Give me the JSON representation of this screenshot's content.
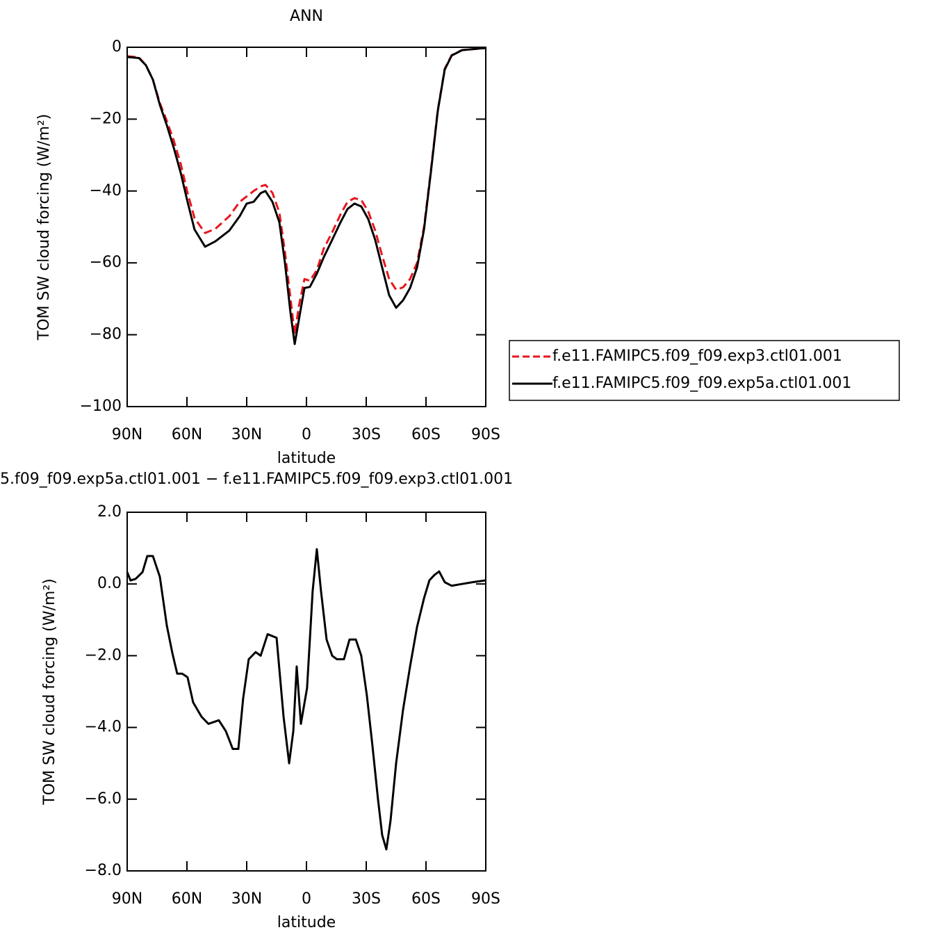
{
  "chart_data": [
    {
      "type": "line",
      "title": "ANN",
      "xlabel": "latitude",
      "ylabel": "TOM SW cloud forcing (W/m²)",
      "x": [
        90,
        84.1,
        80.6,
        77.1,
        73.6,
        70.1,
        66.6,
        63.1,
        59.7,
        56.2,
        50.9,
        45.7,
        38.7,
        33.5,
        30,
        26.5,
        23,
        20.6,
        17.1,
        13.6,
        10.8,
        8,
        5.9,
        3.8,
        1,
        -1.7,
        -5.2,
        -8.7,
        -12.9,
        -17.1,
        -20.6,
        -24.1,
        -27.5,
        -31,
        -34.5,
        -38,
        -41.5,
        -45,
        -48.5,
        -52,
        -55.5,
        -59,
        -62.4,
        -65.9,
        -69.4,
        -72.9,
        -78.1,
        -90
      ],
      "series": [
        {
          "name": "f.e11.FAMIPC5.f09_f09.exp3.ctl01.001",
          "color": "#e8161c",
          "dashed": true,
          "values": [
            -2.5,
            -2.8,
            -5,
            -9,
            -15.5,
            -20.5,
            -26,
            -32.5,
            -40.5,
            -47.5,
            -51.7,
            -50.5,
            -47,
            -43,
            -41.5,
            -40,
            -38.7,
            -38.3,
            -40.5,
            -46,
            -57,
            -70,
            -80,
            -72,
            -64.5,
            -65,
            -62,
            -56,
            -51.5,
            -46.5,
            -43,
            -42,
            -42.5,
            -45.7,
            -51,
            -58,
            -64.5,
            -67.5,
            -66.8,
            -64.5,
            -60,
            -50,
            -34.5,
            -17.5,
            -6,
            -2.2,
            -0.8,
            -0.2
          ]
        },
        {
          "name": "f.e11.FAMIPC5.f09_f09.exp5a.ctl01.001",
          "color": "#000000",
          "dashed": false,
          "values": [
            -2.7,
            -3,
            -5,
            -9,
            -16,
            -21.7,
            -28,
            -35,
            -43,
            -50.7,
            -55.5,
            -54,
            -51,
            -47,
            -43.5,
            -43,
            -40.6,
            -40,
            -43,
            -48.7,
            -60,
            -74,
            -82.6,
            -75.8,
            -67,
            -66.7,
            -63,
            -58.4,
            -53.6,
            -48.7,
            -45,
            -43.5,
            -44.3,
            -47.8,
            -53.6,
            -61.3,
            -69,
            -72.5,
            -70.4,
            -67,
            -61.3,
            -50.7,
            -35,
            -17.8,
            -6.2,
            -2.3,
            -0.8,
            -0.2
          ]
        }
      ],
      "xlim": [
        90,
        -90
      ],
      "xticks": [
        {
          "value": 90,
          "label": "90N"
        },
        {
          "value": 60,
          "label": "60N"
        },
        {
          "value": 30,
          "label": "30N"
        },
        0,
        {
          "value": -30,
          "label": "30S"
        },
        {
          "value": -60,
          "label": "60S"
        },
        {
          "value": -90,
          "label": "90S"
        }
      ],
      "ylim": [
        -100,
        0
      ],
      "yticks": [
        {
          "value": -100,
          "label": "−100"
        },
        {
          "value": -80,
          "label": "−80"
        },
        {
          "value": -60,
          "label": "−60"
        },
        {
          "value": -40,
          "label": "−40"
        },
        {
          "value": -20,
          "label": "−20"
        },
        0
      ],
      "legend": "right"
    },
    {
      "type": "line",
      "title": "5.f09_f09.exp5a.ctl01.001 − f.e11.FAMIPC5.f09_f09.exp3.ctl01.001",
      "xlabel": "latitude",
      "ylabel": "TOM SW cloud forcing (W/m²)",
      "x": [
        90,
        88.3,
        85.8,
        82.3,
        79.9,
        77.1,
        73.6,
        70.1,
        67.3,
        64.9,
        62.4,
        59.7,
        56.9,
        52.7,
        49.2,
        44,
        40.5,
        37,
        34.2,
        31.8,
        29,
        25.5,
        23,
        19.5,
        15,
        11.5,
        8.7,
        6.6,
        4.9,
        2.8,
        -0.3,
        -3.1,
        -5.2,
        -7.3,
        -10.1,
        -12.9,
        -15.3,
        -18.8,
        -21.6,
        -24.8,
        -27.5,
        -30.3,
        -33.1,
        -35.9,
        -38,
        -40.1,
        -42.2,
        -45,
        -48.5,
        -52,
        -55.5,
        -59,
        -61.7,
        -64.2,
        -66.6,
        -69.4,
        -72.9,
        -78.1,
        -83.4,
        -90
      ],
      "series": [
        {
          "color": "#000000",
          "dashed": false,
          "values": [
            0.33,
            0.1,
            0.14,
            0.33,
            0.78,
            0.78,
            0.2,
            -1.16,
            -1.93,
            -2.5,
            -2.5,
            -2.6,
            -3.3,
            -3.7,
            -3.9,
            -3.8,
            -4.1,
            -4.6,
            -4.6,
            -3.2,
            -2.1,
            -1.9,
            -2.0,
            -1.4,
            -1.5,
            -3.7,
            -5.0,
            -4.1,
            -2.3,
            -3.9,
            -2.9,
            -0.2,
            0.97,
            -0.2,
            -1.55,
            -2.0,
            -2.1,
            -2.1,
            -1.55,
            -1.55,
            -2.0,
            -3.1,
            -4.5,
            -6.0,
            -7.0,
            -7.4,
            -6.6,
            -5.0,
            -3.5,
            -2.3,
            -1.2,
            -0.4,
            0.1,
            0.25,
            0.35,
            0.05,
            -0.05,
            0,
            0.05,
            0.1
          ]
        }
      ],
      "xlim": [
        90,
        -90
      ],
      "xticks": [
        {
          "value": 90,
          "label": "90N"
        },
        {
          "value": 60,
          "label": "60N"
        },
        {
          "value": 30,
          "label": "30N"
        },
        0,
        {
          "value": -30,
          "label": "30S"
        },
        {
          "value": -60,
          "label": "60S"
        },
        {
          "value": -90,
          "label": "90S"
        }
      ],
      "ylim": [
        -8,
        2
      ],
      "yticks": [
        {
          "value": -8,
          "label": "−8.0"
        },
        {
          "value": -6,
          "label": "−6.0"
        },
        {
          "value": -4,
          "label": "−4.0"
        },
        {
          "value": -2,
          "label": "−2.0"
        },
        {
          "value": 0,
          "label": "0.0"
        },
        {
          "value": 2,
          "label": "2.0"
        }
      ]
    }
  ]
}
